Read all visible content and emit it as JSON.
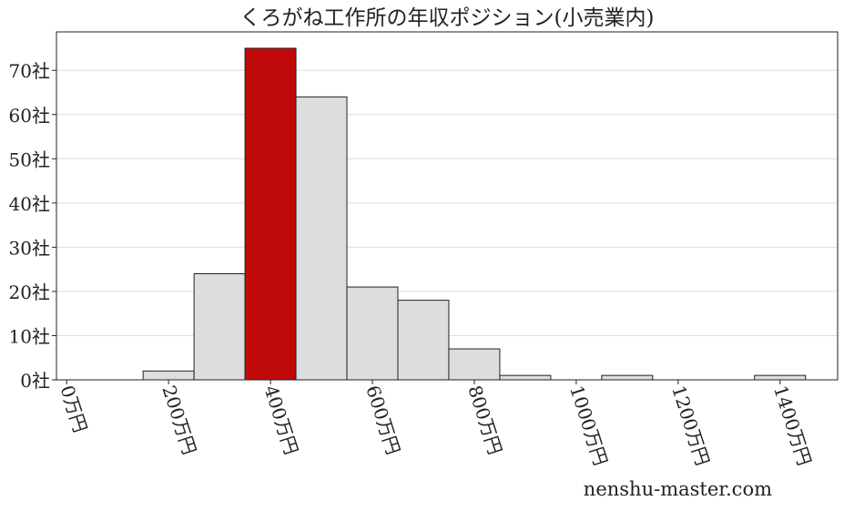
{
  "chart_data": {
    "type": "bar",
    "title": "くろがね工作所の年収ポジション(小売業内)",
    "bin_edges": [
      50,
      150,
      250,
      350,
      450,
      550,
      650,
      750,
      850,
      950,
      1050,
      1150,
      1250,
      1350,
      1450
    ],
    "values": [
      0,
      2,
      24,
      75,
      64,
      21,
      18,
      7,
      1,
      0,
      1,
      0,
      0,
      1
    ],
    "highlight_bin_index": 3,
    "xlim": [
      -20,
      1513
    ],
    "ylim": [
      0,
      78.7
    ],
    "x_ticks": [
      0,
      200,
      400,
      600,
      800,
      1000,
      1200,
      1400
    ],
    "x_tick_labels": [
      "0万円",
      "200万円",
      "400万円",
      "600万円",
      "800万円",
      "1000万円",
      "1200万円",
      "1400万円"
    ],
    "y_ticks": [
      0,
      10,
      20,
      30,
      40,
      50,
      60,
      70
    ],
    "y_tick_labels": [
      "0社",
      "10社",
      "20社",
      "30社",
      "40社",
      "50社",
      "60社",
      "70社"
    ],
    "grid": "horizontal",
    "colors": {
      "bar": "#dcdddf",
      "highlight": "#c00a0a",
      "edge": "#222222",
      "grid": "#dddddd"
    }
  },
  "watermark": "nenshu-master.com"
}
